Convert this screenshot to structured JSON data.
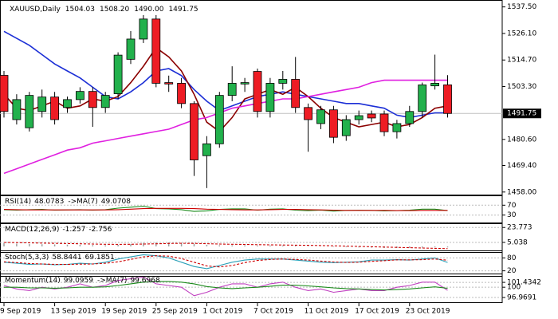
{
  "chart_data": [
    {
      "type": "candlestick",
      "title": "XAUUSD,Daily",
      "ohlc_labels": [
        "1504.03",
        "1508.20",
        "1490.00",
        "1491.75"
      ],
      "categories": [
        "9 Sep 2019",
        null,
        null,
        null,
        "13 Sep 2019",
        null,
        null,
        null,
        "19 Sep 2019",
        null,
        null,
        null,
        "25 Sep 2019",
        null,
        null,
        null,
        "1 Oct 2019",
        null,
        null,
        null,
        "7 Oct 2019",
        null,
        null,
        null,
        "11 Oct 2019",
        null,
        null,
        null,
        "17 Oct 2019",
        null,
        null,
        null,
        "23 Oct 2019",
        null,
        null,
        null
      ],
      "open": [
        1508.1,
        1489.1,
        1485.6,
        1492.6,
        1498.8,
        1494.3,
        1497.7,
        1501.2,
        1494.3,
        1500.2,
        1515,
        1523.7,
        1532.3,
        1505,
        1504.7,
        1496,
        1473.6,
        1478.7,
        1499.5,
        1504.4,
        1509.8,
        1492.6,
        1504.7,
        1506.4,
        1494.3,
        1487.4,
        1493.3,
        1482.2,
        1489.1,
        1491.5,
        1491.5,
        1483.9,
        1487.4,
        1492.6,
        1503.6,
        1504.03
      ],
      "high": [
        1510,
        1500,
        1501,
        1502,
        1501,
        1499,
        1503,
        1503,
        1501,
        1518,
        1527.1,
        1534,
        1534,
        1508,
        1507,
        1497,
        1482,
        1501,
        1512,
        1507,
        1511,
        1507,
        1510,
        1516,
        1496,
        1495,
        1495,
        1491,
        1493,
        1493,
        1493,
        1489,
        1495,
        1505,
        1517,
        1508.2
      ],
      "low": [
        1490,
        1487,
        1484,
        1490,
        1487,
        1492,
        1496,
        1486,
        1492,
        1498,
        1513,
        1522,
        1503,
        1501,
        1494,
        1464.9,
        1459.7,
        1477,
        1497,
        1501,
        1490,
        1490,
        1502,
        1492,
        1475.3,
        1485,
        1479,
        1480,
        1487,
        1488,
        1482,
        1481,
        1486,
        1490,
        1502,
        1490
      ],
      "close": [
        1492.6,
        1497.7,
        1499.5,
        1498.8,
        1489.1,
        1497.7,
        1501.2,
        1494.3,
        1499.5,
        1516.8,
        1523.7,
        1532.3,
        1504.7,
        1504.4,
        1496,
        1471.8,
        1478.7,
        1499.5,
        1504.7,
        1505,
        1492.6,
        1504.7,
        1506.4,
        1494.3,
        1489.1,
        1493.3,
        1481.5,
        1489.1,
        1490.8,
        1489.8,
        1483.9,
        1487.4,
        1492.6,
        1504,
        1504.7,
        1491.75
      ],
      "up_color": "#22b14c",
      "down_color": "#ee1c24",
      "series": [
        {
          "color": "#1c2fd6",
          "values": [
            1527,
            1524,
            1521,
            1517,
            1513,
            1510,
            1507,
            1503,
            1499,
            1498,
            1501,
            1505,
            1510,
            1511,
            1508,
            1502,
            1497,
            1493,
            1495,
            1497,
            1499,
            1500,
            1501,
            1500,
            1499,
            1498,
            1497,
            1496,
            1496,
            1495,
            1494,
            1491,
            1490,
            1491,
            1492,
            1492
          ]
        },
        {
          "color": "#8b0000",
          "values": [
            1500,
            1494,
            1493,
            1495,
            1497,
            1494,
            1495,
            1498,
            1497,
            1499,
            1505,
            1512,
            1520,
            1516,
            1510,
            1500,
            1488,
            1484,
            1490,
            1498,
            1500,
            1502,
            1500,
            1503,
            1499,
            1494,
            1490,
            1488,
            1486,
            1487,
            1488,
            1486,
            1487,
            1490,
            1494,
            1495
          ]
        },
        {
          "color": "#e020e0",
          "values": [
            1466,
            1468,
            1470,
            1472,
            1474,
            1476,
            1477,
            1479,
            1480,
            1481,
            1482,
            1483,
            1484,
            1485,
            1487,
            1489,
            1490,
            1492,
            1494,
            1495,
            1496,
            1497,
            1498,
            1498,
            1499,
            1500,
            1501,
            1502,
            1503,
            1505,
            1506,
            1506,
            1506,
            1506,
            1506,
            1506
          ]
        }
      ],
      "ylim": [
        1456.9,
        1539.1
      ],
      "yticks": [
        {
          "value": 1537.5,
          "label": "1537.50"
        },
        {
          "value": 1526.1,
          "label": "1526.10"
        },
        {
          "value": 1514.7,
          "label": "1514.70"
        },
        {
          "value": 1503.3,
          "label": "1503.30"
        },
        {
          "value": 1480.6,
          "label": "1480.60"
        },
        {
          "value": 1469.4,
          "label": "1469.40"
        },
        {
          "value": 1458,
          "label": "1458.00"
        }
      ]
    },
    {
      "type": "line",
      "series": [
        {
          "name": "RSI(14)",
          "color": "#1a8a1a",
          "values": [
            52,
            50,
            52,
            53,
            50,
            51,
            52,
            50,
            52,
            58,
            62,
            66,
            56,
            55,
            52,
            45,
            47,
            53,
            55,
            55,
            50,
            54,
            55,
            50,
            48,
            50,
            46,
            49,
            50,
            49,
            47,
            48,
            50,
            54,
            54,
            48.0783
          ]
        },
        {
          "name": "->MA(7)",
          "color": "#cc0000",
          "values": [
            53,
            52,
            51,
            51,
            51,
            51,
            51,
            51,
            51,
            52,
            54,
            56,
            57,
            57,
            57,
            56,
            54,
            53,
            52,
            51,
            51,
            52,
            53,
            53,
            52,
            51,
            50,
            49,
            49,
            49,
            49,
            48,
            48,
            49,
            49,
            49.0708
          ]
        }
      ],
      "ylim": [
        0,
        100
      ],
      "yticks": [
        70,
        30
      ]
    },
    {
      "type": "macd",
      "series": [
        {
          "name": "MACD(12,26,9)",
          "color": "#a0a0a0",
          "values": [
            4,
            3.5,
            3,
            2.8,
            2.5,
            2.2,
            2,
            1.7,
            1.5,
            2,
            3,
            4.5,
            5,
            5,
            4.5,
            3.5,
            2,
            1.5,
            1.5,
            1.5,
            1.2,
            1.2,
            1.3,
            1,
            0.5,
            0,
            -0.6,
            -1,
            -1.3,
            -1.5,
            -1.9,
            -2,
            -1.9,
            -1.5,
            -1.2,
            -1.257
          ]
        },
        {
          "color": "#cc0000",
          "values": [
            5,
            4.8,
            4.5,
            4.2,
            3.9,
            3.6,
            3.3,
            3,
            2.7,
            2.6,
            2.7,
            3,
            3.3,
            3.7,
            3.9,
            3.8,
            3.4,
            3,
            2.7,
            2.5,
            2.2,
            2,
            1.8,
            1.6,
            1.4,
            1.1,
            0.8,
            0.4,
            0,
            -0.4,
            -0.8,
            -1.2,
            -1.6,
            -2,
            -2.4,
            -2.756
          ]
        }
      ],
      "ylim": [
        -6,
        26
      ],
      "yticks": [
        23.773,
        5.038
      ]
    },
    {
      "type": "line",
      "series": [
        {
          "name": "Stoch(5,3,3)",
          "color": "#2aa0b8",
          "values": [
            60,
            55,
            50,
            52,
            48,
            50,
            55,
            52,
            60,
            75,
            85,
            95,
            90,
            80,
            60,
            40,
            30,
            45,
            60,
            70,
            75,
            75,
            75,
            70,
            65,
            60,
            58,
            60,
            62,
            70,
            70,
            72,
            70,
            75,
            80,
            58.8441
          ]
        },
        {
          "color": "#cc0000",
          "dashed": true,
          "values": [
            62,
            58,
            54,
            52,
            50,
            50,
            51,
            52,
            55,
            62,
            73,
            85,
            90,
            88,
            77,
            60,
            43,
            38,
            45,
            58,
            68,
            73,
            75,
            73,
            70,
            65,
            61,
            59,
            60,
            64,
            67,
            71,
            71,
            72,
            75,
            69.1851
          ]
        }
      ],
      "ylim": [
        0,
        100
      ],
      "yticks": [
        80,
        20
      ]
    },
    {
      "type": "line",
      "series": [
        {
          "name": "Momentum(14)",
          "color": "#c040c0",
          "values": [
            100.5,
            99.5,
            99,
            100,
            99.5,
            100,
            101,
            100,
            100.5,
            102,
            102.5,
            103,
            101,
            100.5,
            100,
            97.5,
            98.5,
            100,
            101,
            101,
            100,
            101,
            101.5,
            100,
            99,
            99.5,
            98.5,
            99,
            99.5,
            99,
            99,
            100,
            100.5,
            101.5,
            101.5,
            99.0959
          ]
        },
        {
          "name": "->MA(7)",
          "color": "#1a8a1a",
          "values": [
            100,
            100,
            99.8,
            99.8,
            99.7,
            99.8,
            100,
            100,
            100.1,
            100.5,
            101,
            101.5,
            101.7,
            101.7,
            101.5,
            101,
            100.2,
            99.8,
            99.6,
            99.8,
            100,
            100.3,
            100.6,
            100.6,
            100.4,
            100.1,
            99.8,
            99.6,
            99.5,
            99.3,
            99.2,
            99.3,
            99.5,
            99.8,
            100.1,
            99.6968
          ]
        }
      ],
      "ylim": [
        95.8,
        103.1
      ],
      "yticks": [
        101.4342,
        100,
        96.9691
      ]
    }
  ]
}
